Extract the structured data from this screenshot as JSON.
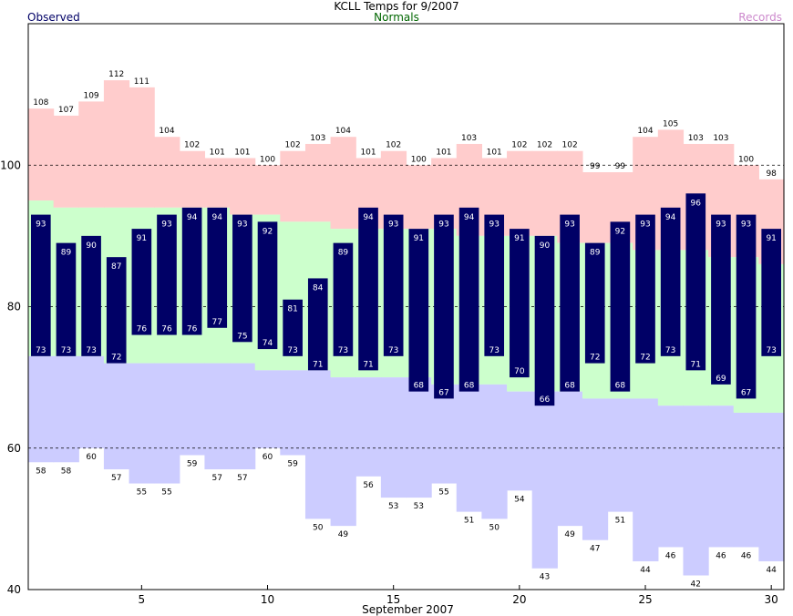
{
  "chart_data": {
    "type": "bar",
    "title": "KCLL Temps for 9/2007",
    "xlabel": "September 2007",
    "ylabel": "",
    "legend": {
      "observed": "Observed",
      "normals": "Normals",
      "records": "Records"
    },
    "days": [
      1,
      2,
      3,
      4,
      5,
      6,
      7,
      8,
      9,
      10,
      11,
      12,
      13,
      14,
      15,
      16,
      17,
      18,
      19,
      20,
      21,
      22,
      23,
      24,
      25,
      26,
      27,
      28,
      29,
      30
    ],
    "x_ticks": [
      5,
      10,
      15,
      20,
      25,
      30
    ],
    "xlim": [
      0.5,
      30.5
    ],
    "ylim": [
      40,
      120
    ],
    "y_ticks": [
      40,
      60,
      80,
      100
    ],
    "grid_lines": [
      60,
      80,
      100
    ],
    "series": [
      {
        "name": "Observed",
        "key": "obs_high",
        "values": [
          93,
          89,
          90,
          87,
          91,
          93,
          94,
          94,
          93,
          92,
          81,
          84,
          89,
          94,
          93,
          91,
          93,
          94,
          93,
          91,
          90,
          93,
          89,
          92,
          93,
          94,
          96,
          93,
          93,
          91
        ]
      },
      {
        "name": "Observed",
        "key": "obs_low",
        "values": [
          73,
          73,
          73,
          72,
          76,
          76,
          76,
          77,
          75,
          74,
          73,
          71,
          73,
          71,
          73,
          68,
          67,
          68,
          73,
          70,
          66,
          68,
          72,
          68,
          72,
          73,
          71,
          69,
          67,
          73
        ]
      },
      {
        "name": "Normals",
        "key": "normal_high",
        "values": [
          95,
          94,
          94,
          94,
          94,
          94,
          94,
          94,
          93,
          93,
          92,
          92,
          91,
          91,
          91,
          91,
          91,
          90,
          90,
          90,
          90,
          89,
          89,
          89,
          88,
          88,
          88,
          87,
          87,
          86
        ]
      },
      {
        "name": "Normals",
        "key": "normal_low",
        "values": [
          73,
          73,
          73,
          72,
          72,
          72,
          72,
          72,
          72,
          71,
          71,
          71,
          70,
          70,
          70,
          70,
          69,
          69,
          69,
          68,
          68,
          68,
          67,
          67,
          67,
          66,
          66,
          66,
          65,
          65
        ]
      },
      {
        "name": "Records",
        "key": "record_high",
        "values": [
          108,
          107,
          109,
          112,
          111,
          104,
          102,
          101,
          101,
          100,
          102,
          103,
          104,
          101,
          102,
          100,
          101,
          103,
          101,
          102,
          102,
          102,
          99,
          99,
          104,
          105,
          103,
          103,
          100,
          98
        ]
      },
      {
        "name": "Records",
        "key": "record_low",
        "values": [
          58,
          58,
          60,
          57,
          55,
          55,
          59,
          57,
          57,
          60,
          59,
          50,
          49,
          56,
          53,
          53,
          55,
          51,
          50,
          54,
          43,
          49,
          47,
          51,
          44,
          46,
          42,
          46,
          46,
          44
        ]
      }
    ],
    "colors": {
      "observed": "#000066",
      "normals": "#ccffcc",
      "records_high": "#ffcccc",
      "records_low": "#ccccff",
      "observed_label": "#000066",
      "normals_label": "#006600",
      "records_label": "#cc88cc",
      "bar_text": "#ffffff",
      "grid": "#000000"
    },
    "grid": true,
    "legend_placement": "top"
  }
}
